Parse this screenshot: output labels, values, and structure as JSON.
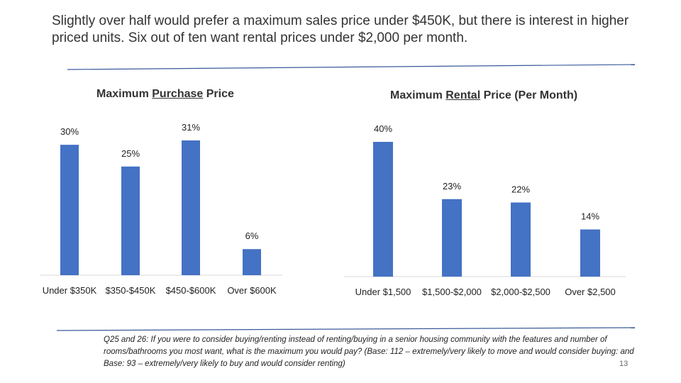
{
  "headline": "Slightly over half would prefer a maximum sales price under $450K, but there is interest in higher priced units.  Six out of ten want rental prices under $2,000 per month.",
  "colors": {
    "bar": "#4472C4",
    "axis": "#d9d9d9",
    "rule": "#3a5a9a"
  },
  "chart_data": [
    {
      "type": "bar",
      "title_prefix": "Maximum ",
      "title_underlined": "Purchase",
      "title_suffix": " Price",
      "categories": [
        "Under $350K",
        "$350-$450K",
        "$450-$600K",
        "Over $600K"
      ],
      "values": [
        30,
        25,
        31,
        6
      ],
      "labels": [
        "30%",
        "25%",
        "31%",
        "6%"
      ],
      "ylim": [
        0,
        31
      ],
      "unit": "%"
    },
    {
      "type": "bar",
      "title_prefix": "Maximum ",
      "title_underlined": "Rental",
      "title_suffix": " Price (Per Month)",
      "categories": [
        "Under $1,500",
        "$1,500-$2,000",
        "$2,000-$2,500",
        "Over $2,500"
      ],
      "values": [
        40,
        23,
        22,
        14
      ],
      "labels": [
        "40%",
        "23%",
        "22%",
        "14%"
      ],
      "ylim": [
        0,
        40
      ],
      "unit": "%"
    }
  ],
  "footnote": "Q25 and 26:  If you were to consider buying/renting instead of renting/buying in a senior housing community with the features and number of rooms/bathrooms you most want, what is the maximum you would pay? (Base:  112 – extremely/very likely to move and would consider buying: and Base: 93 – extremely/very likely to buy and would consider renting)",
  "page_number": "13"
}
